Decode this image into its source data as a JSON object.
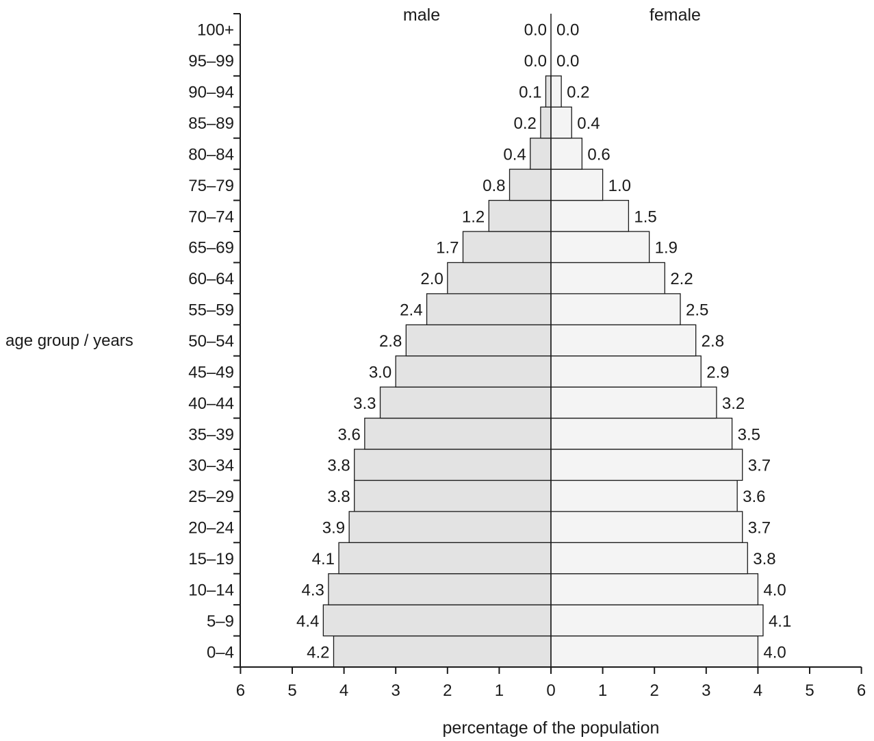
{
  "chart_data": {
    "type": "bar",
    "orientation": "horizontal",
    "subtype": "population-pyramid",
    "ylabel": "age group / years",
    "xlabel": "percentage of the population",
    "categories": [
      "0–4",
      "5–9",
      "10–14",
      "15–19",
      "20–24",
      "25–29",
      "30–34",
      "35–39",
      "40–44",
      "45–49",
      "50–54",
      "55–59",
      "60–64",
      "65–69",
      "70–74",
      "75–79",
      "80–84",
      "85–89",
      "90–94",
      "95–99",
      "100+"
    ],
    "series": [
      {
        "name": "male",
        "values": [
          4.2,
          4.4,
          4.3,
          4.1,
          3.9,
          3.8,
          3.8,
          3.6,
          3.3,
          3.0,
          2.8,
          2.4,
          2.0,
          1.7,
          1.2,
          0.8,
          0.4,
          0.2,
          0.1,
          0.0,
          0.0
        ],
        "labels": [
          "4.2",
          "4.4",
          "4.3",
          "4.1",
          "3.9",
          "3.8",
          "3.8",
          "3.6",
          "3.3",
          "3.0",
          "2.8",
          "2.4",
          "2.0",
          "1.7",
          "1.2",
          "0.8",
          "0.4",
          "0.2",
          "0.1",
          "0.0",
          "0.0"
        ],
        "color": "#e3e3e3"
      },
      {
        "name": "female",
        "values": [
          4.0,
          4.1,
          4.0,
          3.8,
          3.7,
          3.6,
          3.7,
          3.5,
          3.2,
          2.9,
          2.8,
          2.5,
          2.2,
          1.9,
          1.5,
          1.0,
          0.6,
          0.4,
          0.2,
          0.0,
          0.0
        ],
        "labels": [
          "4.0",
          "4.1",
          "4.0",
          "3.8",
          "3.7",
          "3.6",
          "3.7",
          "3.5",
          "3.2",
          "2.9",
          "2.8",
          "2.5",
          "2.2",
          "1.9",
          "1.5",
          "1.0",
          "0.6",
          "0.4",
          "0.2",
          "0.0",
          "0.0"
        ],
        "color": "#f4f4f4"
      }
    ],
    "xlim": [
      -6,
      6
    ],
    "xticks": [
      "6",
      "5",
      "4",
      "3",
      "2",
      "1",
      "0",
      "1",
      "2",
      "3",
      "4",
      "5",
      "6"
    ],
    "grid": false,
    "legend": "none"
  }
}
